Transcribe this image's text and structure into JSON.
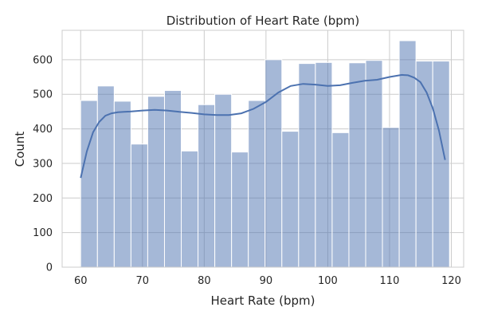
{
  "chart_data": {
    "type": "bar",
    "title": "Distribution of Heart Rate (bpm)",
    "xlabel": "Heart Rate (bpm)",
    "ylabel": "Count",
    "xlim": [
      57,
      122
    ],
    "ylim": [
      0,
      685
    ],
    "xticks": [
      60,
      70,
      80,
      90,
      100,
      110,
      120
    ],
    "yticks": [
      0,
      100,
      200,
      300,
      400,
      500,
      600
    ],
    "grid": true,
    "bin_start": 60,
    "bin_width": 2.714,
    "values": [
      482,
      524,
      480,
      356,
      494,
      511,
      336,
      470,
      500,
      333,
      482,
      600,
      393,
      589,
      592,
      389,
      591,
      598,
      404,
      655,
      596,
      596
    ],
    "bar_color": "#4c72b0",
    "line_color": "#4c72b0",
    "kde": {
      "x": [
        60,
        61,
        62,
        63,
        64,
        65,
        66,
        67,
        68,
        70,
        72,
        74,
        76,
        78,
        80,
        82,
        84,
        86,
        88,
        90,
        92,
        94,
        96,
        98,
        100,
        102,
        104,
        106,
        108,
        110,
        112,
        113,
        114,
        115,
        116,
        117,
        118,
        119
      ],
      "y": [
        258,
        335,
        390,
        420,
        438,
        445,
        448,
        449,
        450,
        453,
        455,
        453,
        449,
        446,
        442,
        440,
        440,
        445,
        458,
        478,
        505,
        524,
        530,
        528,
        524,
        526,
        533,
        539,
        542,
        550,
        556,
        555,
        548,
        535,
        505,
        460,
        395,
        310
      ]
    }
  }
}
